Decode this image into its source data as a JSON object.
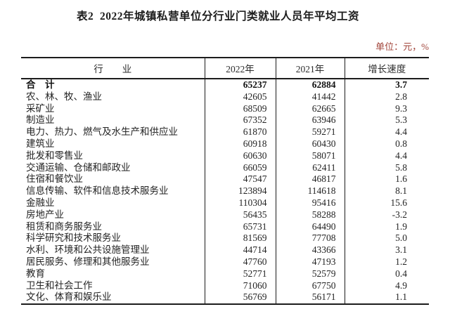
{
  "page": {
    "title": "表2  2022年城镇私营单位分行业门类就业人员年平均工资",
    "unit_label": "单位：元，%"
  },
  "colors": {
    "unit_text": "#a1443a",
    "border": "#1c1c1c",
    "text": "#242424"
  },
  "table": {
    "headers": {
      "industry": "行　　业",
      "y2022": "2022年",
      "y2021": "2021年",
      "growth": "增长速度"
    },
    "total_row": {
      "industry": "合　计",
      "y2022": "65237",
      "y2021": "62884",
      "growth": "3.7"
    },
    "rows": [
      {
        "industry": "农、林、牧、渔业",
        "y2022": "42605",
        "y2021": "41442",
        "growth": "2.8"
      },
      {
        "industry": "采矿业",
        "y2022": "68509",
        "y2021": "62665",
        "growth": "9.3"
      },
      {
        "industry": "制造业",
        "y2022": "67352",
        "y2021": "63946",
        "growth": "5.3"
      },
      {
        "industry": "电力、热力、燃气及水生产和供应业",
        "y2022": "61870",
        "y2021": "59271",
        "growth": "4.4"
      },
      {
        "industry": "建筑业",
        "y2022": "60918",
        "y2021": "60430",
        "growth": "0.8"
      },
      {
        "industry": "批发和零售业",
        "y2022": "60630",
        "y2021": "58071",
        "growth": "4.4"
      },
      {
        "industry": "交通运输、仓储和邮政业",
        "y2022": "66059",
        "y2021": "62411",
        "growth": "5.8"
      },
      {
        "industry": "住宿和餐饮业",
        "y2022": "47547",
        "y2021": "46817",
        "growth": "1.6"
      },
      {
        "industry": "信息传输、软件和信息技术服务业",
        "y2022": "123894",
        "y2021": "114618",
        "growth": "8.1"
      },
      {
        "industry": "金融业",
        "y2022": "110304",
        "y2021": "95416",
        "growth": "15.6"
      },
      {
        "industry": "房地产业",
        "y2022": "56435",
        "y2021": "58288",
        "growth": "-3.2"
      },
      {
        "industry": "租赁和商务服务业",
        "y2022": "65731",
        "y2021": "64490",
        "growth": "1.9"
      },
      {
        "industry": "科学研究和技术服务业",
        "y2022": "81569",
        "y2021": "77708",
        "growth": "5.0"
      },
      {
        "industry": "水利、环境和公共设施管理业",
        "y2022": "44714",
        "y2021": "43366",
        "growth": "3.1"
      },
      {
        "industry": "居民服务、修理和其他服务业",
        "y2022": "47760",
        "y2021": "47193",
        "growth": "1.2"
      },
      {
        "industry": "教育",
        "y2022": "52771",
        "y2021": "52579",
        "growth": "0.4"
      },
      {
        "industry": "卫生和社会工作",
        "y2022": "71060",
        "y2021": "67750",
        "growth": "4.9"
      },
      {
        "industry": "文化、体育和娱乐业",
        "y2022": "56769",
        "y2021": "56171",
        "growth": "1.1"
      }
    ]
  }
}
